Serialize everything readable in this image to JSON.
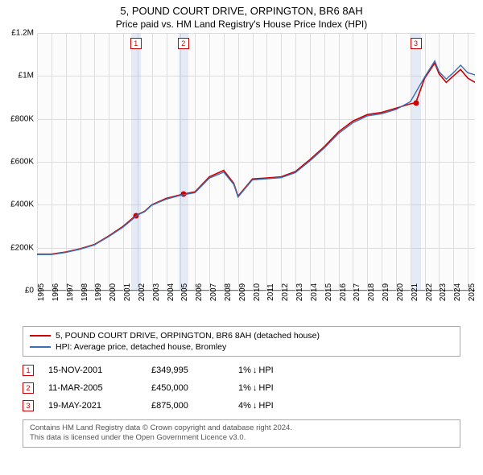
{
  "header": {
    "title": "5, POUND COURT DRIVE, ORPINGTON, BR6 8AH",
    "subtitle": "Price paid vs. HM Land Registry's House Price Index (HPI)"
  },
  "chart": {
    "type": "line",
    "background_color": "#fbfbfb",
    "grid_color": "#dddddd",
    "axis_color": "#777777",
    "x_years": [
      1995,
      1996,
      1997,
      1998,
      1999,
      2000,
      2001,
      2002,
      2003,
      2004,
      2005,
      2006,
      2007,
      2008,
      2009,
      2010,
      2011,
      2012,
      2013,
      2014,
      2015,
      2016,
      2017,
      2018,
      2019,
      2020,
      2021,
      2022,
      2023,
      2024,
      2025
    ],
    "x_min": 1995,
    "x_max": 2025.5,
    "y_ticks": [
      0,
      200000,
      400000,
      600000,
      800000,
      1000000,
      1200000
    ],
    "y_tick_labels": [
      "£0",
      "£200K",
      "£400K",
      "£600K",
      "£800K",
      "£1M",
      "£1.2M"
    ],
    "y_min": 0,
    "y_max": 1200000,
    "series": [
      {
        "name": "property",
        "label": "5, POUND COURT DRIVE, ORPINGTON, BR6 8AH (detached house)",
        "color": "#cc0000",
        "line_width": 1.6,
        "data": [
          [
            1995,
            170000
          ],
          [
            1996,
            170000
          ],
          [
            1997,
            180000
          ],
          [
            1998,
            195000
          ],
          [
            1999,
            215000
          ],
          [
            2000,
            255000
          ],
          [
            2001,
            300000
          ],
          [
            2001.88,
            349995
          ],
          [
            2002.5,
            370000
          ],
          [
            2003,
            400000
          ],
          [
            2004,
            430000
          ],
          [
            2005.19,
            450000
          ],
          [
            2006,
            460000
          ],
          [
            2007,
            530000
          ],
          [
            2008,
            560000
          ],
          [
            2008.7,
            500000
          ],
          [
            2009,
            440000
          ],
          [
            2009.5,
            480000
          ],
          [
            2010,
            520000
          ],
          [
            2011,
            525000
          ],
          [
            2012,
            530000
          ],
          [
            2013,
            555000
          ],
          [
            2014,
            610000
          ],
          [
            2015,
            670000
          ],
          [
            2016,
            740000
          ],
          [
            2017,
            790000
          ],
          [
            2018,
            820000
          ],
          [
            2019,
            830000
          ],
          [
            2020,
            850000
          ],
          [
            2021,
            870000
          ],
          [
            2021.38,
            875000
          ],
          [
            2022,
            990000
          ],
          [
            2022.7,
            1060000
          ],
          [
            2023,
            1010000
          ],
          [
            2023.5,
            970000
          ],
          [
            2024,
            1000000
          ],
          [
            2024.5,
            1030000
          ],
          [
            2025,
            990000
          ],
          [
            2025.5,
            970000
          ]
        ]
      },
      {
        "name": "hpi",
        "label": "HPI: Average price, detached house, Bromley",
        "color": "#3a6fb7",
        "line_width": 1.4,
        "data": [
          [
            1995,
            168000
          ],
          [
            1996,
            168000
          ],
          [
            1997,
            178000
          ],
          [
            1998,
            193000
          ],
          [
            1999,
            213000
          ],
          [
            2000,
            252000
          ],
          [
            2001,
            296000
          ],
          [
            2002,
            352000
          ],
          [
            2002.5,
            368000
          ],
          [
            2003,
            398000
          ],
          [
            2004,
            426000
          ],
          [
            2005,
            444000
          ],
          [
            2006,
            456000
          ],
          [
            2007,
            524000
          ],
          [
            2008,
            552000
          ],
          [
            2008.7,
            495000
          ],
          [
            2009,
            436000
          ],
          [
            2009.5,
            476000
          ],
          [
            2010,
            516000
          ],
          [
            2011,
            521000
          ],
          [
            2012,
            526000
          ],
          [
            2013,
            550000
          ],
          [
            2014,
            604000
          ],
          [
            2015,
            664000
          ],
          [
            2016,
            732000
          ],
          [
            2017,
            782000
          ],
          [
            2018,
            814000
          ],
          [
            2019,
            824000
          ],
          [
            2020,
            844000
          ],
          [
            2021,
            880000
          ],
          [
            2022,
            995000
          ],
          [
            2022.7,
            1070000
          ],
          [
            2023,
            1020000
          ],
          [
            2023.5,
            985000
          ],
          [
            2024,
            1015000
          ],
          [
            2024.5,
            1050000
          ],
          [
            2025,
            1015000
          ],
          [
            2025.5,
            1005000
          ]
        ]
      }
    ],
    "sale_markers": [
      {
        "n": "1",
        "year": 2001.88,
        "price": 349995,
        "band_color": "rgba(100,150,220,0.15)",
        "badge_color": "#cc0000",
        "dot_color": "#cc0000"
      },
      {
        "n": "2",
        "year": 2005.19,
        "price": 450000,
        "band_color": "rgba(100,150,220,0.15)",
        "badge_color": "#cc0000",
        "dot_color": "#cc0000"
      },
      {
        "n": "3",
        "year": 2021.38,
        "price": 875000,
        "band_color": "rgba(100,150,220,0.15)",
        "badge_color": "#cc0000",
        "dot_color": "#cc0000"
      }
    ]
  },
  "legend": {
    "border_color": "#aaaaaa",
    "items": [
      {
        "color": "#cc0000",
        "label": "5, POUND COURT DRIVE, ORPINGTON, BR6 8AH (detached house)"
      },
      {
        "color": "#3a6fb7",
        "label": "HPI: Average price, detached house, Bromley"
      }
    ]
  },
  "sales": [
    {
      "n": "1",
      "date": "15-NOV-2001",
      "price": "£349,995",
      "hpi_pct": "1%",
      "hpi_dir": "↓",
      "hpi_label": "HPI"
    },
    {
      "n": "2",
      "date": "11-MAR-2005",
      "price": "£450,000",
      "hpi_pct": "1%",
      "hpi_dir": "↓",
      "hpi_label": "HPI"
    },
    {
      "n": "3",
      "date": "19-MAY-2021",
      "price": "£875,000",
      "hpi_pct": "4%",
      "hpi_dir": "↓",
      "hpi_label": "HPI"
    }
  ],
  "footer": {
    "line1": "Contains HM Land Registry data © Crown copyright and database right 2024.",
    "line2": "This data is licensed under the Open Government Licence v3.0."
  }
}
